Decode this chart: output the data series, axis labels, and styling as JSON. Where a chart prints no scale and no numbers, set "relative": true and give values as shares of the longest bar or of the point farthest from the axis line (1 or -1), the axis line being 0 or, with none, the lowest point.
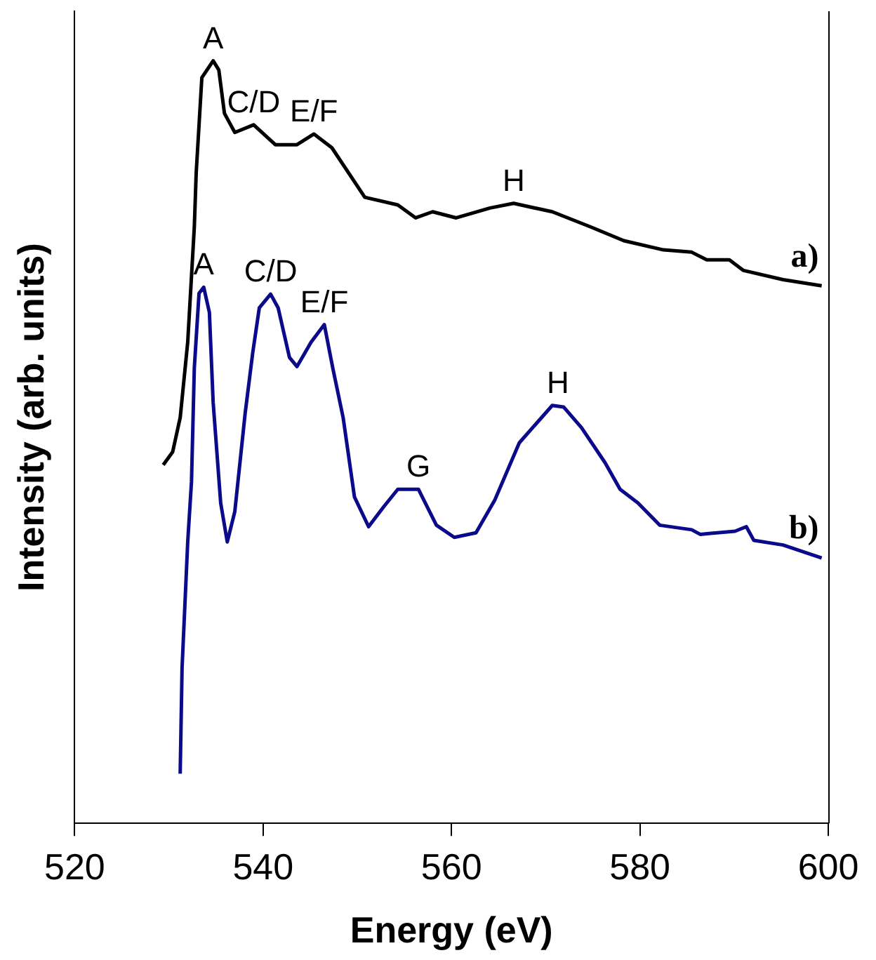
{
  "chart_data": {
    "type": "line",
    "relative": true,
    "xlabel": "Energy (eV)",
    "ylabel": "Intensity (arb. units)",
    "xlim": [
      520,
      600
    ],
    "xticks": [
      520,
      540,
      560,
      580,
      600
    ],
    "grid": false,
    "legend": false,
    "marker": "none",
    "line_style": "solid",
    "series": [
      {
        "name": "a)",
        "color": "#000000",
        "x": [
          529.4,
          530.4,
          531.2,
          532.0,
          532.7,
          532.9,
          533.5,
          534.7,
          535.3,
          535.9,
          537.0,
          539.0,
          541.3,
          543.6,
          545.4,
          547.3,
          550.8,
          554.3,
          556.2,
          558.0,
          560.5,
          564.1,
          566.6,
          570.7,
          574.8,
          578.3,
          582.5,
          585.5,
          587.1,
          589.5,
          591.0,
          595.2,
          599.3
        ],
        "values": [
          0.47,
          0.487,
          0.532,
          0.631,
          0.782,
          0.853,
          0.978,
          1.0,
          0.988,
          0.931,
          0.906,
          0.916,
          0.89,
          0.89,
          0.904,
          0.886,
          0.821,
          0.811,
          0.794,
          0.802,
          0.794,
          0.807,
          0.813,
          0.802,
          0.782,
          0.764,
          0.752,
          0.749,
          0.739,
          0.739,
          0.725,
          0.713,
          0.705
        ]
      },
      {
        "name": "b)",
        "color": "#0a0a8a",
        "x": [
          531.2,
          531.4,
          532.0,
          532.4,
          532.7,
          533.2,
          533.7,
          534.3,
          534.7,
          535.5,
          536.2,
          537.0,
          538.1,
          538.9,
          539.6,
          540.8,
          541.6,
          542.8,
          543.6,
          545.1,
          546.5,
          547.4,
          548.5,
          549.7,
          551.2,
          552.8,
          554.3,
          556.5,
          558.4,
          560.3,
          562.6,
          564.6,
          567.2,
          570.7,
          571.9,
          573.8,
          576.3,
          577.9,
          579.8,
          582.1,
          585.5,
          586.4,
          590.1,
          591.3,
          592.1,
          595.2,
          599.3
        ],
        "values": [
          0.065,
          0.204,
          0.369,
          0.448,
          0.597,
          0.695,
          0.703,
          0.67,
          0.552,
          0.42,
          0.369,
          0.409,
          0.538,
          0.617,
          0.676,
          0.694,
          0.676,
          0.611,
          0.599,
          0.631,
          0.654,
          0.597,
          0.532,
          0.428,
          0.389,
          0.415,
          0.438,
          0.438,
          0.391,
          0.375,
          0.381,
          0.424,
          0.499,
          0.548,
          0.546,
          0.519,
          0.473,
          0.438,
          0.42,
          0.391,
          0.385,
          0.379,
          0.383,
          0.389,
          0.371,
          0.365,
          0.348
        ]
      }
    ],
    "annotations": [
      {
        "text": "A",
        "x": 534.7,
        "y": 1.0
      },
      {
        "text": "C/D",
        "x": 539.0,
        "y": 0.916
      },
      {
        "text": "E/F",
        "x": 545.4,
        "y": 0.904
      },
      {
        "text": "H",
        "x": 566.6,
        "y": 0.813
      },
      {
        "text": "A",
        "x": 533.7,
        "y": 0.703
      },
      {
        "text": "C/D",
        "x": 540.8,
        "y": 0.694
      },
      {
        "text": "E/F",
        "x": 546.5,
        "y": 0.654
      },
      {
        "text": "G",
        "x": 556.5,
        "y": 0.438
      },
      {
        "text": "H",
        "x": 571.3,
        "y": 0.548
      }
    ]
  }
}
